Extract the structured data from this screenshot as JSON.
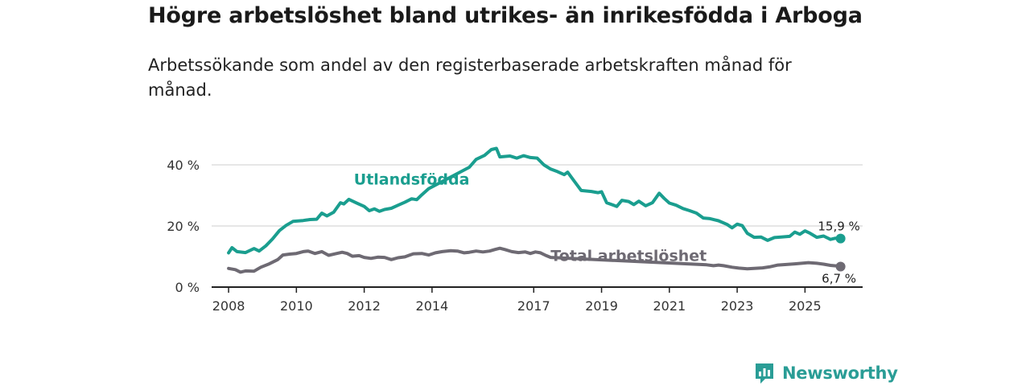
{
  "title": "Högre arbetslöshet bland utrikes- än inrikesfödda i Arboga",
  "subtitle": "Arbetssökande som andel av den registerbaserade arbetskraften månad för månad.",
  "brand": {
    "name": "Newsworthy"
  },
  "colors": {
    "foreign": "#1a9e8f",
    "total": "#6e6a73",
    "axis": "#222222",
    "grid": "#dddddd"
  },
  "chart_data": {
    "type": "line",
    "title": "Högre arbetslöshet bland utrikes- än inrikesfödda i Arboga",
    "xlabel": "",
    "ylabel": "",
    "xlim": [
      2007.5,
      2026.7
    ],
    "ylim": [
      0,
      40
    ],
    "y_ticks": [
      {
        "value": 0,
        "label": "0 %"
      },
      {
        "value": 20,
        "label": "20 %"
      },
      {
        "value": 40,
        "label": "40 %"
      }
    ],
    "x_ticks": [
      {
        "value": 2008,
        "label": "2008"
      },
      {
        "value": 2010,
        "label": "2010"
      },
      {
        "value": 2012,
        "label": "2012"
      },
      {
        "value": 2014,
        "label": "2014"
      },
      {
        "value": 2017,
        "label": "2017"
      },
      {
        "value": 2019,
        "label": "2019"
      },
      {
        "value": 2021,
        "label": "2021"
      },
      {
        "value": 2023,
        "label": "2023"
      },
      {
        "value": 2025,
        "label": "2025"
      }
    ],
    "series": [
      {
        "name": "Utlandsfödda",
        "color": "#1a9e8f",
        "end_label": "15,9 %",
        "points": [
          [
            2008.0,
            11.2
          ],
          [
            2008.1,
            12.9
          ],
          [
            2008.25,
            11.6
          ],
          [
            2008.5,
            11.3
          ],
          [
            2008.75,
            12.6
          ],
          [
            2008.9,
            11.8
          ],
          [
            2009.1,
            13.5
          ],
          [
            2009.3,
            15.8
          ],
          [
            2009.5,
            18.5
          ],
          [
            2009.7,
            20.2
          ],
          [
            2009.9,
            21.5
          ],
          [
            2010.2,
            21.8
          ],
          [
            2010.4,
            22.1
          ],
          [
            2010.6,
            22.2
          ],
          [
            2010.75,
            24.2
          ],
          [
            2010.9,
            23.3
          ],
          [
            2011.1,
            24.5
          ],
          [
            2011.3,
            27.6
          ],
          [
            2011.4,
            27.2
          ],
          [
            2011.55,
            28.7
          ],
          [
            2011.8,
            27.4
          ],
          [
            2012.0,
            26.4
          ],
          [
            2012.15,
            25.0
          ],
          [
            2012.3,
            25.6
          ],
          [
            2012.45,
            24.8
          ],
          [
            2012.6,
            25.4
          ],
          [
            2012.8,
            25.8
          ],
          [
            2013.0,
            26.8
          ],
          [
            2013.2,
            27.8
          ],
          [
            2013.4,
            28.9
          ],
          [
            2013.55,
            28.6
          ],
          [
            2013.7,
            30.2
          ],
          [
            2013.9,
            32.2
          ],
          [
            2015.1,
            39.2
          ],
          [
            2015.3,
            41.8
          ],
          [
            2015.55,
            43.1
          ],
          [
            2015.75,
            45.0
          ],
          [
            2015.9,
            45.4
          ],
          [
            2016.0,
            42.6
          ],
          [
            2016.3,
            42.9
          ],
          [
            2016.5,
            42.2
          ],
          [
            2016.7,
            43.0
          ],
          [
            2016.9,
            42.4
          ],
          [
            2017.1,
            42.2
          ],
          [
            2017.3,
            40.0
          ],
          [
            2017.5,
            38.6
          ],
          [
            2017.7,
            37.8
          ],
          [
            2017.9,
            36.8
          ],
          [
            2018.0,
            37.6
          ],
          [
            2018.2,
            34.6
          ],
          [
            2018.4,
            31.6
          ],
          [
            2018.7,
            31.3
          ],
          [
            2018.9,
            30.9
          ],
          [
            2019.0,
            31.2
          ],
          [
            2019.15,
            27.6
          ],
          [
            2019.3,
            27.0
          ],
          [
            2019.45,
            26.4
          ],
          [
            2019.6,
            28.4
          ],
          [
            2019.8,
            28.0
          ],
          [
            2019.95,
            27.0
          ],
          [
            2020.1,
            28.1
          ],
          [
            2020.3,
            26.6
          ],
          [
            2020.5,
            27.6
          ],
          [
            2020.7,
            30.7
          ],
          [
            2020.85,
            29.0
          ],
          [
            2021.0,
            27.5
          ],
          [
            2021.2,
            26.8
          ],
          [
            2021.4,
            25.7
          ],
          [
            2021.6,
            25.0
          ],
          [
            2021.8,
            24.2
          ],
          [
            2022.0,
            22.6
          ],
          [
            2022.2,
            22.4
          ],
          [
            2022.45,
            21.7
          ],
          [
            2022.7,
            20.5
          ],
          [
            2022.85,
            19.4
          ],
          [
            2023.0,
            20.6
          ],
          [
            2023.15,
            20.1
          ],
          [
            2023.3,
            17.6
          ],
          [
            2023.5,
            16.3
          ],
          [
            2023.7,
            16.4
          ],
          [
            2023.9,
            15.3
          ],
          [
            2024.1,
            16.2
          ],
          [
            2024.3,
            16.4
          ],
          [
            2024.55,
            16.6
          ],
          [
            2024.7,
            18.0
          ],
          [
            2024.85,
            17.3
          ],
          [
            2025.0,
            18.4
          ],
          [
            2025.15,
            17.6
          ],
          [
            2025.35,
            16.3
          ],
          [
            2025.55,
            16.7
          ],
          [
            2025.75,
            15.6
          ],
          [
            2025.9,
            16.0
          ],
          [
            2026.05,
            15.9
          ]
        ]
      },
      {
        "name": "Total arbetslöshet",
        "color": "#6e6a73",
        "end_label": "6,7 %",
        "points": [
          [
            2008.0,
            6.1
          ],
          [
            2008.2,
            5.7
          ],
          [
            2008.35,
            4.9
          ],
          [
            2008.5,
            5.3
          ],
          [
            2008.75,
            5.2
          ],
          [
            2008.95,
            6.5
          ],
          [
            2009.2,
            7.6
          ],
          [
            2009.45,
            9.0
          ],
          [
            2009.6,
            10.5
          ],
          [
            2009.8,
            10.8
          ],
          [
            2010.0,
            11.0
          ],
          [
            2010.2,
            11.6
          ],
          [
            2010.35,
            11.8
          ],
          [
            2010.55,
            11.0
          ],
          [
            2010.75,
            11.6
          ],
          [
            2010.95,
            10.4
          ],
          [
            2011.15,
            10.9
          ],
          [
            2011.35,
            11.4
          ],
          [
            2011.5,
            11.0
          ],
          [
            2011.65,
            10.1
          ],
          [
            2011.85,
            10.3
          ],
          [
            2012.0,
            9.7
          ],
          [
            2012.2,
            9.4
          ],
          [
            2012.4,
            9.8
          ],
          [
            2012.6,
            9.7
          ],
          [
            2012.8,
            9.0
          ],
          [
            2013.0,
            9.6
          ],
          [
            2013.2,
            9.9
          ],
          [
            2013.45,
            10.9
          ],
          [
            2013.7,
            11.0
          ],
          [
            2013.9,
            10.5
          ],
          [
            2014.1,
            11.2
          ],
          [
            2014.3,
            11.6
          ],
          [
            2014.55,
            11.9
          ],
          [
            2014.75,
            11.8
          ],
          [
            2014.95,
            11.2
          ],
          [
            2015.1,
            11.4
          ],
          [
            2015.3,
            11.8
          ],
          [
            2015.5,
            11.5
          ],
          [
            2015.7,
            11.8
          ],
          [
            2015.85,
            12.3
          ],
          [
            2016.0,
            12.7
          ],
          [
            2016.15,
            12.3
          ],
          [
            2016.35,
            11.6
          ],
          [
            2016.55,
            11.3
          ],
          [
            2016.75,
            11.5
          ],
          [
            2016.9,
            11.0
          ],
          [
            2017.05,
            11.5
          ],
          [
            2017.2,
            11.2
          ],
          [
            2017.35,
            10.4
          ],
          [
            2017.5,
            9.7
          ],
          [
            2022.1,
            7.3
          ],
          [
            2022.3,
            7.0
          ],
          [
            2022.45,
            7.2
          ],
          [
            2022.6,
            7.0
          ],
          [
            2022.85,
            6.5
          ],
          [
            2023.05,
            6.2
          ],
          [
            2023.3,
            6.0
          ],
          [
            2023.5,
            6.1
          ],
          [
            2023.75,
            6.3
          ],
          [
            2023.95,
            6.6
          ],
          [
            2024.2,
            7.2
          ],
          [
            2024.45,
            7.4
          ],
          [
            2024.7,
            7.6
          ],
          [
            2024.9,
            7.8
          ],
          [
            2025.1,
            8.0
          ],
          [
            2025.35,
            7.8
          ],
          [
            2025.55,
            7.5
          ],
          [
            2025.75,
            7.1
          ],
          [
            2025.95,
            6.9
          ],
          [
            2026.05,
            6.7
          ]
        ]
      }
    ],
    "annotations": [
      {
        "text": "Utlandsfödda",
        "series": "Utlandsfödda"
      },
      {
        "text": "Total arbetslöshet",
        "series": "Total arbetslöshet"
      }
    ]
  }
}
